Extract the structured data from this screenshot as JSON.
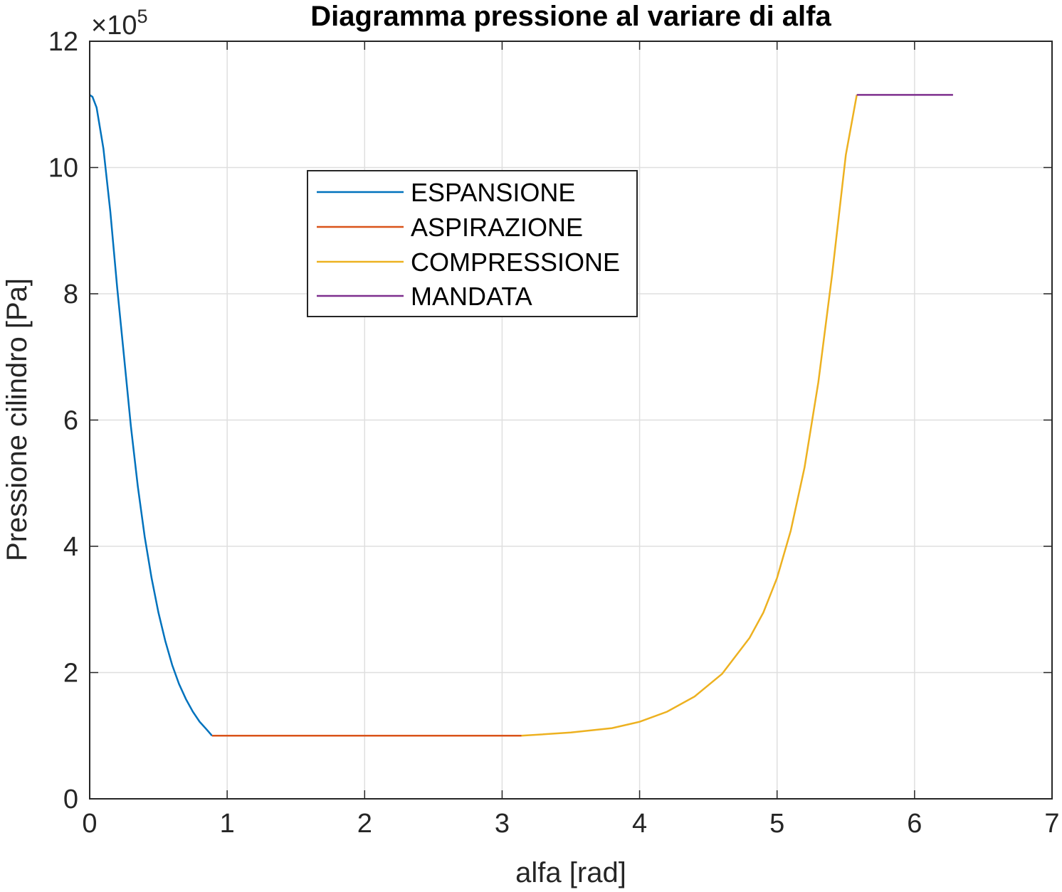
{
  "chart_data": {
    "type": "line",
    "title": "Diagramma pressione al variare di alfa",
    "xlabel": "alfa [rad]",
    "ylabel": "Pressione cilindro [Pa]",
    "y_exponent_base": "×10",
    "y_exponent_power": "5",
    "xlim": [
      0,
      7
    ],
    "ylim": [
      0,
      12
    ],
    "y_scale": 100000,
    "xticks": [
      "0",
      "1",
      "2",
      "3",
      "4",
      "5",
      "6",
      "7"
    ],
    "yticks": [
      "0",
      "2",
      "4",
      "6",
      "8",
      "10",
      "12"
    ],
    "grid": true,
    "legend_position": "upper-left-center",
    "series": [
      {
        "name": "ESPANSIONE",
        "color": "#0072BD",
        "x": [
          0,
          0.02,
          0.05,
          0.1,
          0.15,
          0.2,
          0.25,
          0.3,
          0.35,
          0.4,
          0.45,
          0.5,
          0.55,
          0.6,
          0.65,
          0.7,
          0.75,
          0.8,
          0.85,
          0.89
        ],
        "y": [
          11.15,
          11.12,
          10.95,
          10.3,
          9.3,
          8.1,
          7.0,
          5.9,
          4.95,
          4.15,
          3.5,
          2.95,
          2.5,
          2.12,
          1.82,
          1.58,
          1.38,
          1.22,
          1.1,
          1.0
        ]
      },
      {
        "name": "ASPIRAZIONE",
        "color": "#D95319",
        "x": [
          0.89,
          3.14
        ],
        "y": [
          1.0,
          1.0
        ]
      },
      {
        "name": "COMPRESSIONE",
        "color": "#EDB120",
        "x": [
          3.14,
          3.5,
          3.8,
          4.0,
          4.2,
          4.4,
          4.6,
          4.8,
          4.9,
          5.0,
          5.1,
          5.2,
          5.3,
          5.4,
          5.5,
          5.58
        ],
        "y": [
          1.0,
          1.05,
          1.12,
          1.22,
          1.38,
          1.62,
          1.98,
          2.55,
          2.95,
          3.5,
          4.25,
          5.25,
          6.6,
          8.3,
          10.2,
          11.15
        ]
      },
      {
        "name": "MANDATA",
        "color": "#7E2F8E",
        "x": [
          5.58,
          6.28
        ],
        "y": [
          11.15,
          11.15
        ]
      }
    ]
  }
}
